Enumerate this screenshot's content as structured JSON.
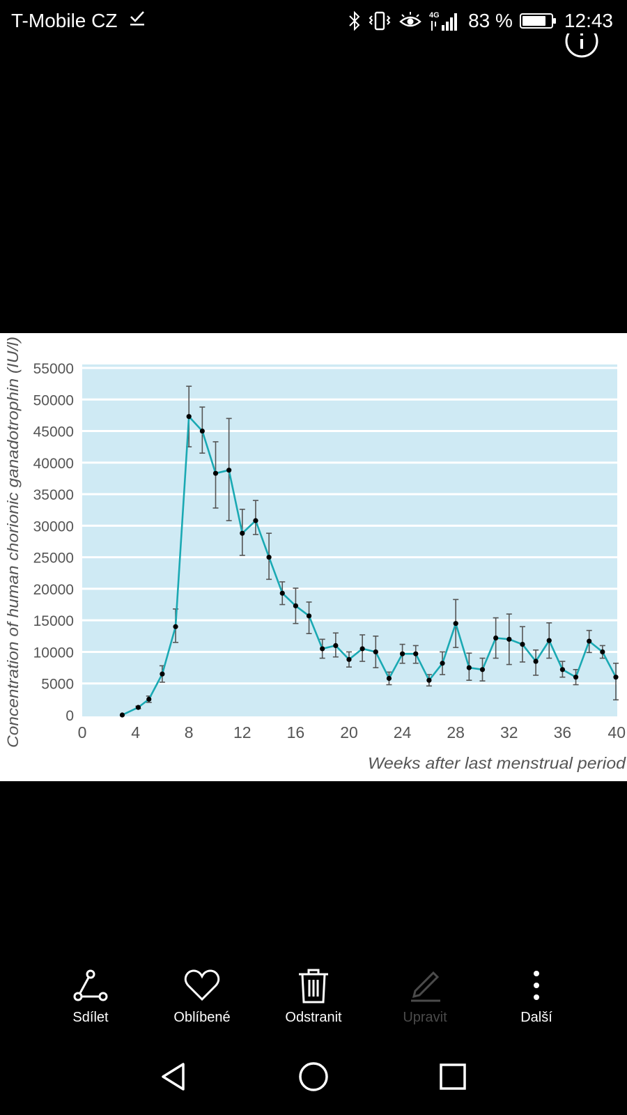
{
  "status_bar": {
    "carrier": "T-Mobile CZ",
    "network": "4G",
    "battery": "83 %",
    "battery_level": 0.83,
    "time": "12:43",
    "icons": [
      "check-icon",
      "bluetooth-icon",
      "vibrate-icon",
      "eye-comfort-icon",
      "signal-icon",
      "battery-icon"
    ]
  },
  "viewer": {
    "info_icon": "info-icon"
  },
  "actions": [
    {
      "label": "Sdílet",
      "icon": "share-icon",
      "enabled": true
    },
    {
      "label": "Oblíbené",
      "icon": "heart-icon",
      "enabled": true
    },
    {
      "label": "Odstranit",
      "icon": "trash-icon",
      "enabled": true
    },
    {
      "label": "Upravit",
      "icon": "edit-icon",
      "enabled": false
    },
    {
      "label": "Další",
      "icon": "more-icon",
      "enabled": true
    }
  ],
  "nav": [
    "back-icon",
    "home-icon",
    "recents-icon"
  ],
  "colors": {
    "plot_background": "#cfeaf4",
    "line": "#1aa9b3",
    "marker": "#000000",
    "error_bar": "#555555",
    "disabled_text": "#4b4b4b"
  },
  "chart_data": {
    "type": "line",
    "title": "",
    "xlabel": "Weeks after last menstrual period",
    "ylabel": "Concentration of human chorionic ganadotrophin (IU/l)",
    "xlim": [
      0,
      40
    ],
    "ylim": [
      0,
      55000
    ],
    "xticks": [
      0,
      4,
      8,
      12,
      16,
      20,
      24,
      28,
      32,
      36,
      40
    ],
    "yticks": [
      0,
      5000,
      10000,
      15000,
      20000,
      25000,
      30000,
      35000,
      40000,
      45000,
      50000,
      55000
    ],
    "grid": "horizontal",
    "x": [
      3,
      4.2,
      5,
      6,
      7,
      8,
      9,
      10,
      11,
      12,
      13,
      14,
      15,
      16,
      17,
      18,
      19,
      20,
      21,
      22,
      23,
      24,
      25,
      26,
      27,
      28,
      29,
      30,
      31,
      32,
      33,
      34,
      35,
      36,
      37,
      38,
      39,
      40
    ],
    "y": [
      0,
      1200,
      2500,
      6500,
      14000,
      47300,
      45000,
      38300,
      38800,
      28800,
      30800,
      25000,
      19300,
      17300,
      15700,
      10500,
      11000,
      8800,
      10500,
      10000,
      5800,
      9700,
      9700,
      5500,
      8200,
      14500,
      7500,
      7200,
      12200,
      12000,
      11200,
      8500,
      11800,
      7200,
      6000,
      11700,
      10000,
      6000
    ],
    "err_low": [
      0,
      200,
      500,
      1300,
      2500,
      4800,
      3500,
      5500,
      8000,
      3500,
      2200,
      3500,
      1800,
      2800,
      2800,
      1500,
      1800,
      1200,
      2000,
      2500,
      1000,
      1500,
      1500,
      900,
      1800,
      3800,
      2000,
      1800,
      3200,
      4000,
      2800,
      2200,
      2800,
      1200,
      1200,
      1800,
      1000,
      3600
    ],
    "err_high": [
      0,
      200,
      500,
      1300,
      2800,
      4800,
      3800,
      5000,
      8200,
      3800,
      3200,
      3800,
      1800,
      2800,
      2200,
      1500,
      2000,
      1200,
      2200,
      2500,
      1000,
      1500,
      1300,
      900,
      1800,
      3800,
      2300,
      1800,
      3200,
      4000,
      2800,
      1800,
      2800,
      1300,
      1200,
      1700,
      1000,
      2200
    ]
  }
}
